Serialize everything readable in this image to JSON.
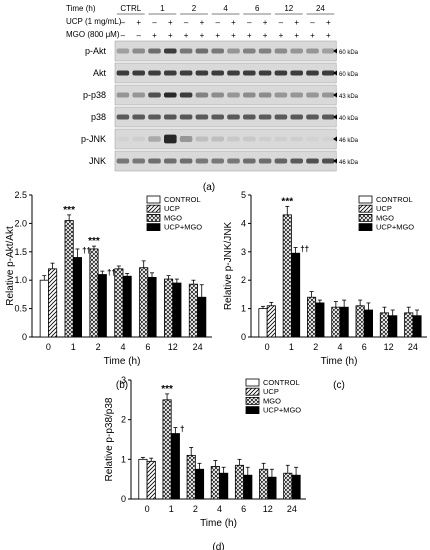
{
  "blot": {
    "time_label": "Time (h)",
    "ucp_label": "UCP (1 mg/mL)",
    "mgo_label": "MGO (800 μM)",
    "time_groups": [
      "CTRL",
      "1",
      "2",
      "4",
      "6",
      "12",
      "24"
    ],
    "ucp_signs": [
      "–",
      "+",
      "–",
      "+",
      "–",
      "+",
      "–",
      "+",
      "–",
      "+",
      "–",
      "+",
      "–",
      "+"
    ],
    "mgo_signs": [
      "–",
      "–",
      "+",
      "+",
      "+",
      "+",
      "+",
      "+",
      "+",
      "+",
      "+",
      "+",
      "+",
      "+"
    ],
    "rows": [
      {
        "label": "p-Akt",
        "kda": "60 kDa"
      },
      {
        "label": "Akt",
        "kda": "60 kDa"
      },
      {
        "label": "p-p38",
        "kda": "43 kDa"
      },
      {
        "label": "p38",
        "kda": "40 kDa"
      },
      {
        "label": "p-JNK",
        "kda": "46 kDa"
      },
      {
        "label": "JNK",
        "kda": "46 kDa"
      }
    ],
    "panel_label": "(a)"
  },
  "legend_labels": [
    "CONTROL",
    "UCP",
    "MGO",
    "UCP+MGO"
  ],
  "chart_data": [
    {
      "type": "bar",
      "panel_label": "(b)",
      "ylabel": "Relative p-Akt/Akt",
      "xlabel": "Time (h)",
      "ylim": [
        0,
        2.5
      ],
      "yticks": [
        0,
        0.5,
        1.0,
        1.5,
        2.0,
        2.5
      ],
      "ytick_labels": [
        "0",
        "0.5",
        "1.0",
        "1.5",
        "2.0",
        "2.5"
      ],
      "categories": [
        "0",
        "1",
        "2",
        "4",
        "6",
        "12",
        "24"
      ],
      "series": [
        {
          "name": "CONTROL",
          "values": [
            1.0,
            null,
            null,
            null,
            null,
            null,
            null
          ],
          "errors": [
            0.08,
            null,
            null,
            null,
            null,
            null,
            null
          ]
        },
        {
          "name": "UCP",
          "values": [
            1.2,
            null,
            null,
            null,
            null,
            null,
            null
          ],
          "errors": [
            0.1,
            null,
            null,
            null,
            null,
            null,
            null
          ]
        },
        {
          "name": "MGO",
          "values": [
            null,
            2.05,
            1.55,
            1.2,
            1.22,
            1.02,
            0.93
          ],
          "errors": [
            null,
            0.1,
            0.05,
            0.05,
            0.12,
            0.06,
            0.07
          ]
        },
        {
          "name": "UCP+MGO",
          "values": [
            null,
            1.4,
            1.1,
            1.07,
            1.05,
            0.95,
            0.7
          ],
          "errors": [
            null,
            0.15,
            0.06,
            0.05,
            0.08,
            0.07,
            0.22
          ]
        }
      ],
      "annotations": [
        {
          "category": "1",
          "series": "MGO",
          "text": "***"
        },
        {
          "category": "1",
          "series": "UCP+MGO",
          "text": "††"
        },
        {
          "category": "2",
          "series": "MGO",
          "text": "***"
        },
        {
          "category": "2",
          "series": "UCP+MGO",
          "text": "††"
        }
      ]
    },
    {
      "type": "bar",
      "panel_label": "(c)",
      "ylabel": "Relative p-JNK/JNK",
      "xlabel": "Time (h)",
      "ylim": [
        0,
        5
      ],
      "yticks": [
        0,
        1,
        2,
        3,
        4,
        5
      ],
      "ytick_labels": [
        "0",
        "1",
        "2",
        "3",
        "4",
        "5"
      ],
      "categories": [
        "0",
        "1",
        "2",
        "4",
        "6",
        "12",
        "24"
      ],
      "series": [
        {
          "name": "CONTROL",
          "values": [
            1.0,
            null,
            null,
            null,
            null,
            null,
            null
          ],
          "errors": [
            0.08,
            null,
            null,
            null,
            null,
            null,
            null
          ]
        },
        {
          "name": "UCP",
          "values": [
            1.1,
            null,
            null,
            null,
            null,
            null,
            null
          ],
          "errors": [
            0.12,
            null,
            null,
            null,
            null,
            null,
            null
          ]
        },
        {
          "name": "MGO",
          "values": [
            null,
            4.3,
            1.4,
            1.05,
            1.1,
            0.85,
            0.85
          ],
          "errors": [
            null,
            0.3,
            0.2,
            0.2,
            0.2,
            0.2,
            0.2
          ]
        },
        {
          "name": "UCP+MGO",
          "values": [
            null,
            2.95,
            1.2,
            1.05,
            0.95,
            0.75,
            0.75
          ],
          "errors": [
            null,
            0.2,
            0.1,
            0.25,
            0.25,
            0.2,
            0.2
          ]
        }
      ],
      "annotations": [
        {
          "category": "1",
          "series": "MGO",
          "text": "***"
        },
        {
          "category": "1",
          "series": "UCP+MGO",
          "text": "††"
        }
      ]
    },
    {
      "type": "bar",
      "panel_label": "(d)",
      "ylabel": "Relative p-p38/p38",
      "xlabel": "Time (h)",
      "ylim": [
        0,
        3
      ],
      "yticks": [
        0,
        1,
        2,
        3
      ],
      "ytick_labels": [
        "0",
        "1",
        "2",
        "3"
      ],
      "categories": [
        "0",
        "1",
        "2",
        "4",
        "6",
        "12",
        "24"
      ],
      "series": [
        {
          "name": "CONTROL",
          "values": [
            1.0,
            null,
            null,
            null,
            null,
            null,
            null
          ],
          "errors": [
            0.05,
            null,
            null,
            null,
            null,
            null,
            null
          ]
        },
        {
          "name": "UCP",
          "values": [
            0.95,
            null,
            null,
            null,
            null,
            null,
            null
          ],
          "errors": [
            0.08,
            null,
            null,
            null,
            null,
            null,
            null
          ]
        },
        {
          "name": "MGO",
          "values": [
            null,
            2.5,
            1.1,
            0.82,
            0.85,
            0.75,
            0.65
          ],
          "errors": [
            null,
            0.15,
            0.2,
            0.15,
            0.15,
            0.15,
            0.2
          ]
        },
        {
          "name": "UCP+MGO",
          "values": [
            null,
            1.65,
            0.75,
            0.65,
            0.6,
            0.55,
            0.6
          ],
          "errors": [
            null,
            0.15,
            0.15,
            0.15,
            0.2,
            0.2,
            0.2
          ]
        }
      ],
      "annotations": [
        {
          "category": "1",
          "series": "MGO",
          "text": "***"
        },
        {
          "category": "1",
          "series": "UCP+MGO",
          "text": "†"
        }
      ]
    }
  ]
}
